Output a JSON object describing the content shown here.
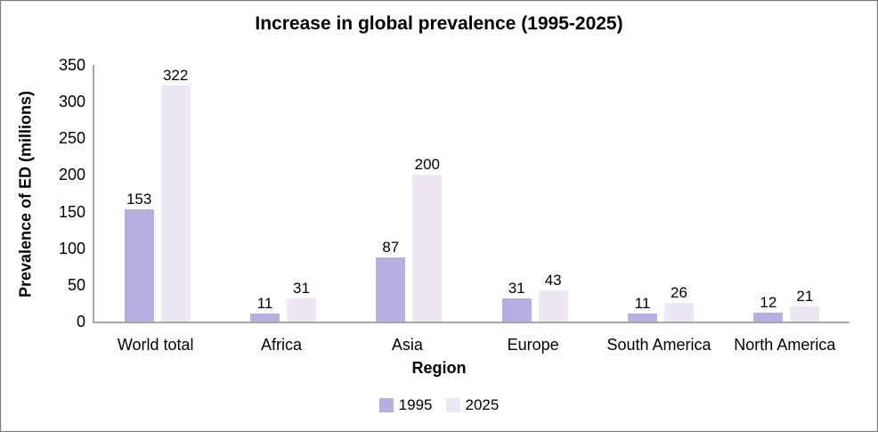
{
  "title": "Increase in global prevalence (1995-2025)",
  "chart_data": {
    "type": "bar",
    "title": "Increase in global prevalence (1995-2025)",
    "categories": [
      "World total",
      "Africa",
      "Asia",
      "Europe",
      "South America",
      "North America"
    ],
    "series": [
      {
        "name": "1995",
        "color": "#b6b0e1",
        "values": [
          153,
          11,
          87,
          31,
          11,
          12
        ]
      },
      {
        "name": "2025",
        "color": "#ece6f5",
        "values": [
          322,
          31,
          200,
          43,
          26,
          21
        ]
      }
    ],
    "xlabel": "Region",
    "ylabel": "Prevalence of ED (millions)",
    "ylim": [
      0,
      350
    ],
    "ytick_step": 50,
    "yticks": [
      0,
      50,
      100,
      150,
      200,
      250,
      300,
      350
    ],
    "grid": false,
    "legend_position": "bottom",
    "data_labels": true
  },
  "colors": {
    "axis": "#a6a6a6",
    "text": "#000000",
    "frame_border": "#7f7f7f",
    "background": "#ffffff",
    "series_1995": "#b6b0e1",
    "series_2025": "#ece6f5"
  }
}
